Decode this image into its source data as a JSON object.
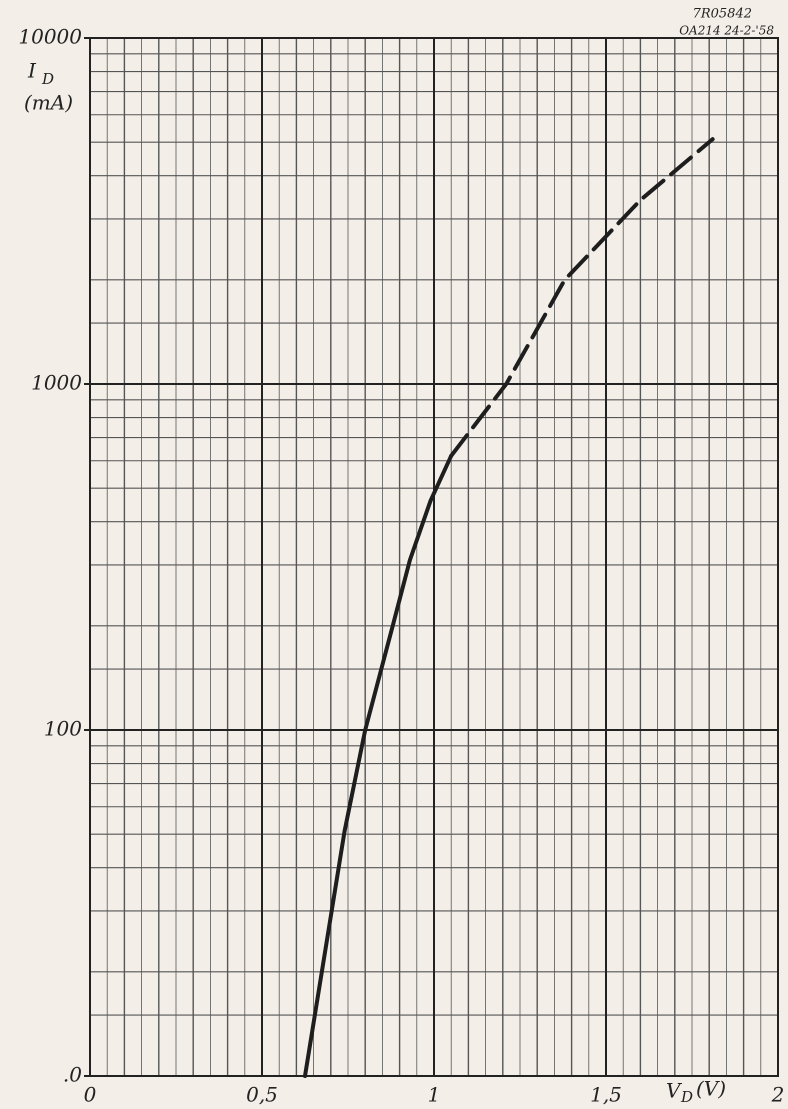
{
  "chart_data": {
    "type": "line",
    "annotations": [
      "7R05842",
      "OA214 24-2-'58"
    ],
    "ylabel": {
      "symbol": "I",
      "subscript": "D",
      "unit": "(mA)"
    },
    "xlabel": {
      "symbol": "V",
      "subscript": "D",
      "unit": "(V)"
    },
    "xlim": [
      0,
      2
    ],
    "xticks": [
      0,
      {
        "value": 0.5,
        "label": "0,5"
      },
      1,
      {
        "value": 1.5,
        "label": "1,5"
      },
      2
    ],
    "ylim": [
      10,
      10000
    ],
    "yticks": [
      {
        "value": 10,
        "label": ".0"
      },
      100,
      1000,
      10000
    ],
    "log_y": true,
    "grid": true,
    "xgrid_step": 0.05,
    "series": [
      {
        "color": "#1e1e1e",
        "dash": false,
        "x": [
          0.625,
          0.74,
          0.8,
          0.88,
          0.93,
          0.99,
          1.05
        ],
        "values": [
          10,
          51,
          100,
          200,
          310,
          460,
          620
        ]
      },
      {
        "color": "#1e1e1e",
        "dash": true,
        "x": [
          1.05,
          1.21,
          1.38,
          1.6,
          1.81
        ],
        "values": [
          620,
          1000,
          2000,
          3400,
          5100
        ]
      }
    ]
  }
}
